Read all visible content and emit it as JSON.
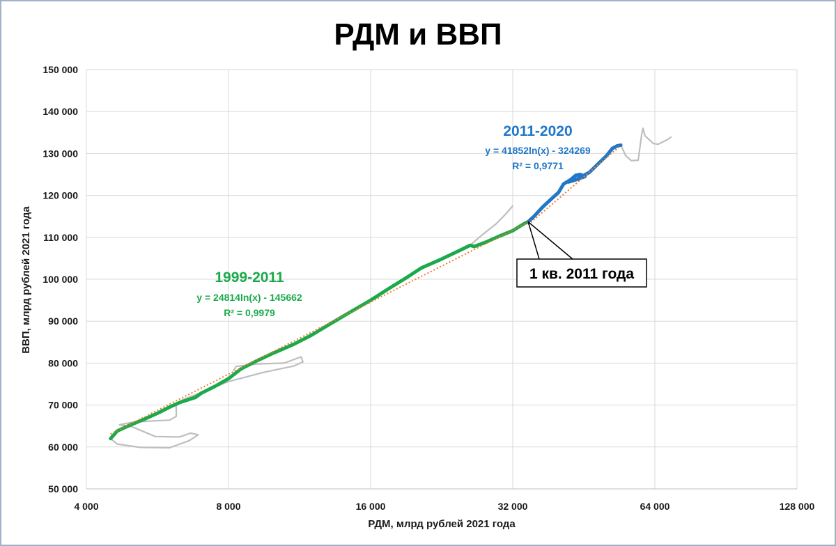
{
  "chart_data": {
    "type": "line",
    "title": "РДМ и ВВП",
    "xlabel": "РДМ, млрд рублей 2021 года",
    "ylabel": "ВВП, млрд рублей 2021 года",
    "x_scale": "log2",
    "xlim": [
      4000,
      128000
    ],
    "ylim": [
      50000,
      150000
    ],
    "x_ticks": [
      4000,
      8000,
      16000,
      32000,
      64000,
      128000
    ],
    "x_tick_labels": [
      "4 000",
      "8 000",
      "16 000",
      "32 000",
      "64 000",
      "128 000"
    ],
    "y_ticks": [
      50000,
      60000,
      70000,
      80000,
      90000,
      100000,
      110000,
      120000,
      130000,
      140000,
      150000
    ],
    "y_tick_labels": [
      "50 000",
      "60 000",
      "70 000",
      "80 000",
      "90 000",
      "100 000",
      "110 000",
      "120 000",
      "130 000",
      "140 000",
      "150 000"
    ],
    "grid": true,
    "series": [
      {
        "name": "1999-2011",
        "color": "#1aaa4b",
        "points": [
          [
            4500,
            62000
          ],
          [
            4650,
            63800
          ],
          [
            4900,
            65000
          ],
          [
            5300,
            66600
          ],
          [
            5700,
            68200
          ],
          [
            6000,
            69500
          ],
          [
            6300,
            70600
          ],
          [
            6800,
            71800
          ],
          [
            7000,
            72800
          ],
          [
            7500,
            74500
          ],
          [
            8000,
            76300
          ],
          [
            8500,
            78600
          ],
          [
            9200,
            80600
          ],
          [
            10000,
            82500
          ],
          [
            11000,
            84500
          ],
          [
            12000,
            86700
          ],
          [
            13200,
            89500
          ],
          [
            14500,
            92200
          ],
          [
            16000,
            95000
          ],
          [
            17500,
            97800
          ],
          [
            19000,
            100300
          ],
          [
            20500,
            102700
          ],
          [
            22500,
            104700
          ],
          [
            24500,
            106700
          ],
          [
            26000,
            108100
          ],
          [
            26500,
            107800
          ],
          [
            28000,
            108800
          ],
          [
            30000,
            110300
          ],
          [
            32000,
            111600
          ],
          [
            34000,
            113400
          ],
          [
            34500,
            113700
          ]
        ]
      },
      {
        "name": "2011-2020",
        "color": "#1f77c8",
        "points": [
          [
            34500,
            113700
          ],
          [
            35500,
            115000
          ],
          [
            37000,
            117200
          ],
          [
            38500,
            119000
          ],
          [
            40000,
            120700
          ],
          [
            41000,
            122700
          ],
          [
            42500,
            123800
          ],
          [
            43500,
            124800
          ],
          [
            44500,
            125000
          ],
          [
            45500,
            124500
          ],
          [
            44000,
            123900
          ],
          [
            42000,
            123200
          ],
          [
            44000,
            124000
          ],
          [
            46500,
            125500
          ],
          [
            48500,
            127500
          ],
          [
            50500,
            129400
          ],
          [
            52000,
            131200
          ],
          [
            53200,
            131800
          ],
          [
            54200,
            132000
          ]
        ]
      },
      {
        "name": "gray",
        "color": "#bebebe",
        "segments": [
          [
            [
              4500,
              62000
            ],
            [
              4650,
              60700
            ],
            [
              5200,
              59900
            ],
            [
              6000,
              59800
            ],
            [
              6600,
              61500
            ],
            [
              6900,
              62900
            ],
            [
              6650,
              63300
            ],
            [
              6300,
              62400
            ],
            [
              5600,
              62500
            ],
            [
              5000,
              64800
            ],
            [
              4700,
              65300
            ],
            [
              5000,
              65900
            ],
            [
              5500,
              66200
            ],
            [
              6000,
              66400
            ],
            [
              6200,
              67300
            ],
            [
              6200,
              70000
            ],
            [
              6400,
              71300
            ],
            [
              7200,
              73500
            ],
            [
              8000,
              75600
            ],
            [
              9500,
              77800
            ],
            [
              11000,
              79300
            ],
            [
              11500,
              80300
            ],
            [
              11400,
              81500
            ],
            [
              10500,
              80000
            ],
            [
              9200,
              79800
            ],
            [
              8300,
              79200
            ],
            [
              8200,
              78200
            ]
          ],
          [
            [
              26000,
              108100
            ],
            [
              27500,
              110500
            ],
            [
              29500,
              113200
            ],
            [
              31000,
              115700
            ],
            [
              32000,
              117500
            ]
          ],
          [
            [
              54200,
              132000
            ],
            [
              55500,
              129500
            ],
            [
              57000,
              128300
            ],
            [
              59000,
              128400
            ],
            [
              60000,
              134500
            ],
            [
              60400,
              136000
            ],
            [
              61000,
              134200
            ],
            [
              63500,
              132400
            ],
            [
              65000,
              132200
            ],
            [
              68000,
              133300
            ],
            [
              69200,
              133900
            ]
          ]
        ]
      }
    ],
    "trendlines": [
      {
        "name": "trend-1999-2011",
        "equation": "y = 24814ln(x) - 145662",
        "a": 24814,
        "b": -145662,
        "x_from": 4500,
        "x_to": 34500,
        "color": "#f07a2a"
      },
      {
        "name": "trend-2011-2020",
        "equation": "y = 41852ln(x) - 324269",
        "a": 41852,
        "b": -324269,
        "x_from": 34500,
        "x_to": 54200,
        "color": "#f07a2a"
      }
    ],
    "annotations": [
      {
        "title": "1999-2011",
        "equation": "y = 24814ln(x) - 145662",
        "r2": "R² = 0,9979",
        "color": "#1aaa4b"
      },
      {
        "title": "2011-2020",
        "equation": "y = 41852ln(x) - 324269",
        "r2": "R² = 0,9771",
        "color": "#1f77c8"
      }
    ],
    "callout": {
      "text": "1 кв. 2011 года",
      "x": 34500,
      "y": 113700
    }
  }
}
